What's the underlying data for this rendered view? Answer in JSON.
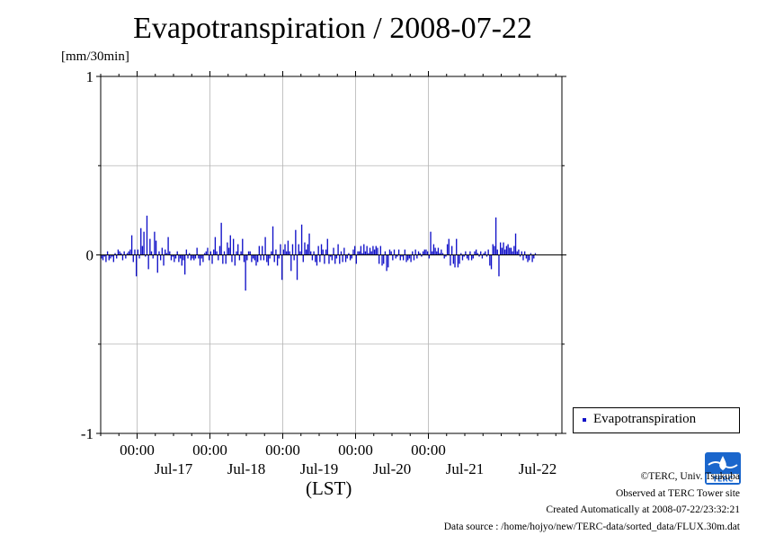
{
  "title": "Evapotranspiration / 2008-07-22",
  "unit_label": "[mm/30min]",
  "x_axis_label": "(LST)",
  "legend_label": "Evapotranspiration",
  "credits": {
    "copyright": "©TERC, Univ. Tsukuba",
    "observed": "Observed at TERC Tower site",
    "created": "Created Automatically at 2008-07-22/23:32:21",
    "source": "Data source : /home/hojyo/new/TERC-data/sorted_data/FLUX.30m.dat"
  },
  "logo_text": "TERC",
  "colors": {
    "series": "#1010c8",
    "grid": "#b4b4b4",
    "axis": "#000000"
  },
  "chart_data": {
    "type": "bar",
    "series": [
      {
        "name": "Evapotranspiration",
        "x_start": "2008-07-16 12:00",
        "interval_minutes": 30,
        "values": [
          -0.02,
          -0.03,
          -0.01,
          -0.04,
          0.02,
          -0.03,
          -0.02,
          -0.01,
          -0.04,
          0.01,
          -0.02,
          0.03,
          0.02,
          0.01,
          -0.03,
          0.02,
          -0.02,
          0.01,
          0.02,
          0.03,
          0.11,
          -0.04,
          0.03,
          -0.12,
          0.03,
          -0.02,
          0.15,
          0.05,
          0.13,
          -0.01,
          0.22,
          -0.08,
          0.09,
          0.02,
          -0.02,
          0.13,
          0.08,
          -0.1,
          0.02,
          -0.03,
          0.04,
          -0.06,
          0.03,
          0.01,
          0.1,
          0.02,
          -0.03,
          -0.01,
          -0.04,
          -0.02,
          0.02,
          -0.04,
          -0.02,
          -0.06,
          -0.03,
          -0.11,
          0.03,
          -0.02,
          0.01,
          -0.03,
          -0.02,
          -0.03,
          -0.02,
          0.04,
          -0.02,
          -0.06,
          -0.02,
          -0.04,
          0.01,
          0.02,
          0.04,
          -0.03,
          0.02,
          -0.05,
          0.03,
          0.1,
          0.02,
          -0.03,
          0.05,
          0.18,
          -0.05,
          0.02,
          -0.05,
          0.07,
          0.04,
          0.11,
          -0.04,
          0.09,
          -0.06,
          0.02,
          0.06,
          -0.03,
          0.02,
          0.09,
          -0.04,
          -0.2,
          -0.03,
          0.02,
          0.02,
          -0.04,
          -0.02,
          -0.03,
          -0.06,
          -0.04,
          0.05,
          -0.03,
          0.05,
          -0.03,
          0.1,
          -0.04,
          -0.06,
          -0.02,
          0.02,
          0.16,
          -0.04,
          0.03,
          -0.06,
          -0.02,
          0.06,
          -0.14,
          0.03,
          0.06,
          0.02,
          0.08,
          0.02,
          -0.09,
          0.06,
          -0.03,
          0.14,
          -0.14,
          0.06,
          0.02,
          0.17,
          -0.04,
          0.07,
          0.03,
          0.06,
          0.12,
          0.02,
          -0.03,
          0.02,
          -0.04,
          -0.06,
          0.05,
          -0.04,
          0.06,
          0.03,
          -0.05,
          0.03,
          0.09,
          -0.05,
          -0.01,
          -0.03,
          0.04,
          -0.05,
          -0.02,
          0.06,
          -0.05,
          0.02,
          -0.04,
          0.04,
          -0.04,
          -0.02,
          0.01,
          -0.03,
          -0.02,
          0.03,
          0.05,
          -0.05,
          0.02,
          0.02,
          0.05,
          0.01,
          0.06,
          0.02,
          0.05,
          0.01,
          0.04,
          0.02,
          0.05,
          0.03,
          0.05,
          0.04,
          -0.05,
          0.05,
          -0.06,
          -0.05,
          0.02,
          -0.09,
          -0.07,
          0.03,
          0.02,
          -0.03,
          0.03,
          -0.02,
          -0.01,
          0.03,
          -0.03,
          -0.01,
          -0.03,
          0.03,
          -0.04,
          -0.03,
          -0.02,
          -0.04,
          0.02,
          -0.03,
          0.03,
          -0.02,
          0.02,
          0.01,
          -0.01,
          0.02,
          0.03,
          0.03,
          0.02,
          -0.02,
          0.13,
          0.02,
          0.06,
          0.04,
          0.02,
          0.04,
          0.01,
          0.03,
          0.01,
          -0.02,
          -0.01,
          0.06,
          0.09,
          -0.06,
          0.05,
          -0.05,
          -0.07,
          0.09,
          -0.07,
          -0.05,
          0.01,
          -0.03,
          -0.01,
          0.02,
          -0.02,
          -0.03,
          0.02,
          -0.03,
          -0.02,
          0.02,
          0.03,
          0.01,
          -0.01,
          0.02,
          -0.02,
          0.01,
          0.02,
          -0.01,
          0.03,
          -0.06,
          -0.08,
          0.06,
          0.05,
          0.21,
          0.03,
          -0.12,
          0.07,
          0.04,
          0.07,
          0.03,
          0.05,
          0.06,
          0.04,
          0.04,
          0.02,
          0.05,
          0.12,
          0.02,
          0.03,
          -0.01,
          0.02,
          -0.03,
          0.02,
          -0.02,
          -0.04,
          -0.03,
          0.01,
          -0.04,
          -0.02,
          0.01
        ]
      }
    ],
    "ylim": [
      -1,
      1
    ],
    "yticks": [
      -1,
      0,
      1
    ],
    "ytick_labels": [
      "-1",
      "0",
      "1"
    ],
    "xlim": [
      "2008-07-16 12:00",
      "2008-07-22 20:00"
    ],
    "xtick_times": [
      "2008-07-17 00:00",
      "2008-07-18 00:00",
      "2008-07-19 00:00",
      "2008-07-20 00:00",
      "2008-07-21 00:00"
    ],
    "xtick_time_labels": [
      "00:00",
      "00:00",
      "00:00",
      "00:00",
      "00:00"
    ],
    "xtick_dates": [
      "2008-07-17 12:00",
      "2008-07-18 12:00",
      "2008-07-19 12:00",
      "2008-07-20 12:00",
      "2008-07-21 12:00",
      "2008-07-22 12:00"
    ],
    "xtick_date_labels": [
      "Jul-17",
      "Jul-18",
      "Jul-19",
      "Jul-20",
      "Jul-21",
      "Jul-22"
    ],
    "grid": true,
    "legend_position": "bottom-right, outside plot"
  }
}
